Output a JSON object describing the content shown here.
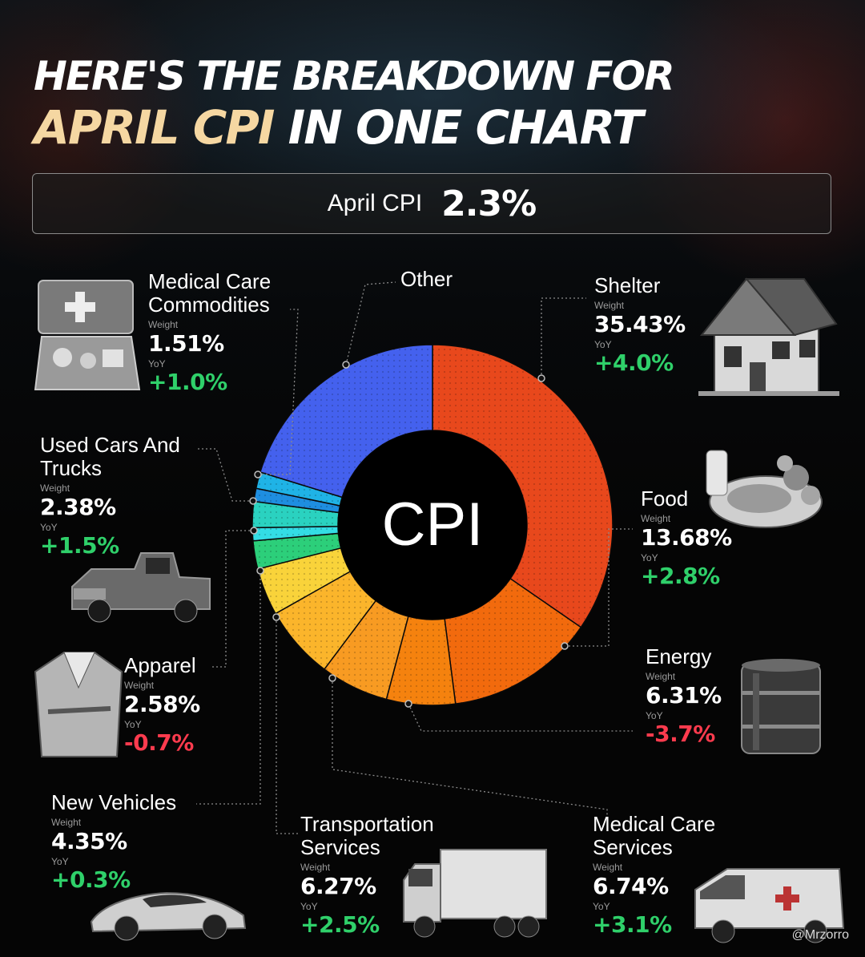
{
  "title": {
    "line1": "HERE'S THE BREAKDOWN FOR",
    "line2_accent": "APRIL CPI",
    "line2_rest": " IN ONE CHART"
  },
  "banner": {
    "label": "April CPI",
    "value": "2.3%"
  },
  "watermark": "@Mrzorro",
  "chart_data": {
    "type": "pie",
    "variant": "donut",
    "center_label": "CPI",
    "series": [
      {
        "name": "Shelter",
        "weight": 35.43,
        "yoy": 4.0,
        "color": "#e8481c"
      },
      {
        "name": "Food",
        "weight": 13.68,
        "yoy": 2.8,
        "color": "#f26a0d"
      },
      {
        "name": "Energy",
        "weight": 6.31,
        "yoy": -3.7,
        "color": "#f5820e"
      },
      {
        "name": "Transportation Services",
        "weight": 6.27,
        "yoy": 2.5,
        "color": "#f89b22"
      },
      {
        "name": "Medical Care Services",
        "weight": 6.74,
        "yoy": 3.1,
        "color": "#fbb52b"
      },
      {
        "name": "New Vehicles",
        "weight": 4.35,
        "yoy": 0.3,
        "color": "#f9d33a"
      },
      {
        "name": "Apparel",
        "weight": 2.58,
        "yoy": -0.7,
        "color": "#2ccf7a"
      },
      {
        "name": "Used Cars And Trucks",
        "weight": 2.38,
        "yoy": 1.5,
        "color": "#2ad2c0"
      },
      {
        "name": "Medical Care Commodities",
        "weight": 1.51,
        "yoy": 1.0,
        "color": "#1fb3e6"
      },
      {
        "name": "Other",
        "weight": 20.75,
        "yoy": null,
        "color": "#4461ee"
      }
    ],
    "extra_slices": [
      {
        "color": "#1e8ee0",
        "weight": 1.2
      },
      {
        "color": "#33dde5",
        "weight": 1.2
      }
    ]
  },
  "labels": {
    "weight": "Weight",
    "yoy": "YoY",
    "shelter": {
      "name": "Shelter",
      "weight": "35.43%",
      "yoy": "+4.0%"
    },
    "food": {
      "name": "Food",
      "weight": "13.68%",
      "yoy": "+2.8%"
    },
    "energy": {
      "name": "Energy",
      "weight": "6.31%",
      "yoy": "-3.7%"
    },
    "medical_services": {
      "name": "Medical Care\nServices",
      "weight": "6.74%",
      "yoy": "+3.1%"
    },
    "transportation": {
      "name": "Transportation\nServices",
      "weight": "6.27%",
      "yoy": "+2.5%"
    },
    "new_vehicles": {
      "name": "New Vehicles",
      "weight": "4.35%",
      "yoy": "+0.3%"
    },
    "apparel": {
      "name": "Apparel",
      "weight": "2.58%",
      "yoy": "-0.7%"
    },
    "used_cars": {
      "name": "Used Cars And\nTrucks",
      "weight": "2.38%",
      "yoy": "+1.5%"
    },
    "medical_commodities": {
      "name": "Medical Care\nCommodities",
      "weight": "1.51%",
      "yoy": "+1.0%"
    },
    "other": {
      "name": "Other"
    }
  },
  "icons": {
    "shelter": "house-icon",
    "food": "food-plate-icon",
    "energy": "oil-barrel-icon",
    "medical_services": "ambulance-icon",
    "transportation": "truck-icon",
    "new_vehicles": "sports-car-icon",
    "apparel": "jacket-icon",
    "used_cars": "pickup-truck-icon",
    "medical_commodities": "medical-kit-icon"
  }
}
